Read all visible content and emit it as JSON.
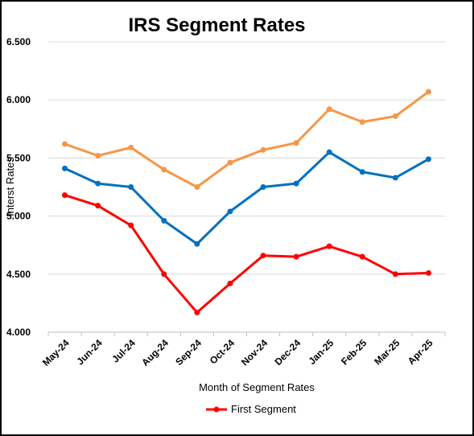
{
  "chart_data": {
    "type": "line",
    "title": "IRS Segment Rates",
    "xlabel": "Month of Segment Rates",
    "ylabel": "Interst Rates",
    "categories": [
      "May-24",
      "Jun-24",
      "Jul-24",
      "Aug-24",
      "Sep-24",
      "Oct-24",
      "Nov-24",
      "Dec-24",
      "Jan-25",
      "Feb-25",
      "Mar-25",
      "Apr-25"
    ],
    "ylim": [
      4.0,
      6.5
    ],
    "yticks": [
      "4.000",
      "4.500",
      "5.000",
      "5.500",
      "6.000",
      "6.500"
    ],
    "grid": true,
    "legend_position": "bottom",
    "series": [
      {
        "name": "First Segment",
        "color": "#ff0000",
        "in_legend": true,
        "values": [
          5.18,
          5.09,
          4.92,
          4.5,
          4.17,
          4.42,
          4.66,
          4.65,
          4.74,
          4.65,
          4.5,
          4.51
        ]
      },
      {
        "color": "#0070c0",
        "in_legend": false,
        "values": [
          5.41,
          5.28,
          5.25,
          4.96,
          4.76,
          5.04,
          5.25,
          5.28,
          5.55,
          5.38,
          5.33,
          5.49
        ]
      },
      {
        "color": "#f79646",
        "in_legend": false,
        "values": [
          5.62,
          5.52,
          5.59,
          5.4,
          5.25,
          5.46,
          5.57,
          5.63,
          5.92,
          5.81,
          5.86,
          6.07
        ]
      }
    ]
  }
}
